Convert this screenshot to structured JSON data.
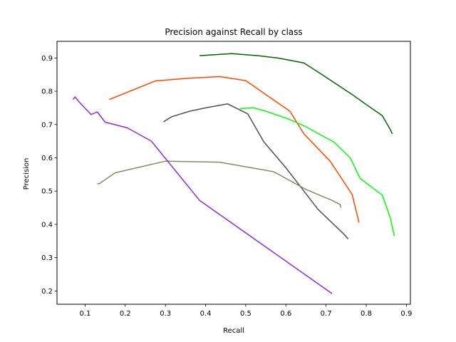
{
  "chart_data": {
    "type": "line",
    "title": "Precision against Recall by class",
    "xlabel": "Recall",
    "ylabel": "Precision",
    "xlim": [
      0.03,
      0.91
    ],
    "ylim": [
      0.16,
      0.95
    ],
    "xticks": [
      0.1,
      0.2,
      0.3,
      0.4,
      0.5,
      0.6,
      0.7,
      0.8,
      0.9
    ],
    "yticks": [
      0.2,
      0.3,
      0.4,
      0.5,
      0.6,
      0.7,
      0.8,
      0.9
    ],
    "grid": false,
    "legend": "none",
    "series": [
      {
        "color": "#006400",
        "x": [
          0.385,
          0.465,
          0.53,
          0.58,
          0.645,
          0.69,
          0.725,
          0.765,
          0.8,
          0.84,
          0.86,
          0.865
        ],
        "y": [
          0.907,
          0.913,
          0.907,
          0.9,
          0.885,
          0.85,
          0.822,
          0.79,
          0.76,
          0.727,
          0.685,
          0.672
        ]
      },
      {
        "color": "#ff4500",
        "x": [
          0.16,
          0.275,
          0.345,
          0.435,
          0.5,
          0.55,
          0.61,
          0.645,
          0.71,
          0.765,
          0.782
        ],
        "y": [
          0.775,
          0.831,
          0.838,
          0.844,
          0.832,
          0.79,
          0.74,
          0.672,
          0.59,
          0.49,
          0.405
        ]
      },
      {
        "color": "#00ff00",
        "x": [
          0.485,
          0.52,
          0.55,
          0.61,
          0.65,
          0.72,
          0.76,
          0.785,
          0.84,
          0.86,
          0.87
        ],
        "y": [
          0.748,
          0.75,
          0.74,
          0.715,
          0.693,
          0.647,
          0.6,
          0.538,
          0.488,
          0.42,
          0.365
        ]
      },
      {
        "color": "#505050",
        "x": [
          0.295,
          0.315,
          0.36,
          0.4,
          0.455,
          0.505,
          0.545,
          0.6,
          0.68,
          0.745,
          0.755
        ],
        "y": [
          0.708,
          0.723,
          0.74,
          0.75,
          0.762,
          0.732,
          0.648,
          0.57,
          0.445,
          0.37,
          0.356
        ]
      },
      {
        "color": "#7a9060",
        "x": [
          0.13,
          0.135,
          0.175,
          0.3,
          0.435,
          0.57,
          0.65,
          0.715,
          0.735,
          0.737
        ],
        "y": [
          0.522,
          0.522,
          0.555,
          0.59,
          0.587,
          0.558,
          0.505,
          0.472,
          0.46,
          0.45
        ]
      },
      {
        "color": "#8a2be2",
        "x": [
          0.07,
          0.075,
          0.085,
          0.115,
          0.13,
          0.15,
          0.205,
          0.265,
          0.385,
          0.715
        ],
        "y": [
          0.775,
          0.783,
          0.768,
          0.73,
          0.738,
          0.707,
          0.69,
          0.65,
          0.472,
          0.192
        ]
      }
    ]
  }
}
